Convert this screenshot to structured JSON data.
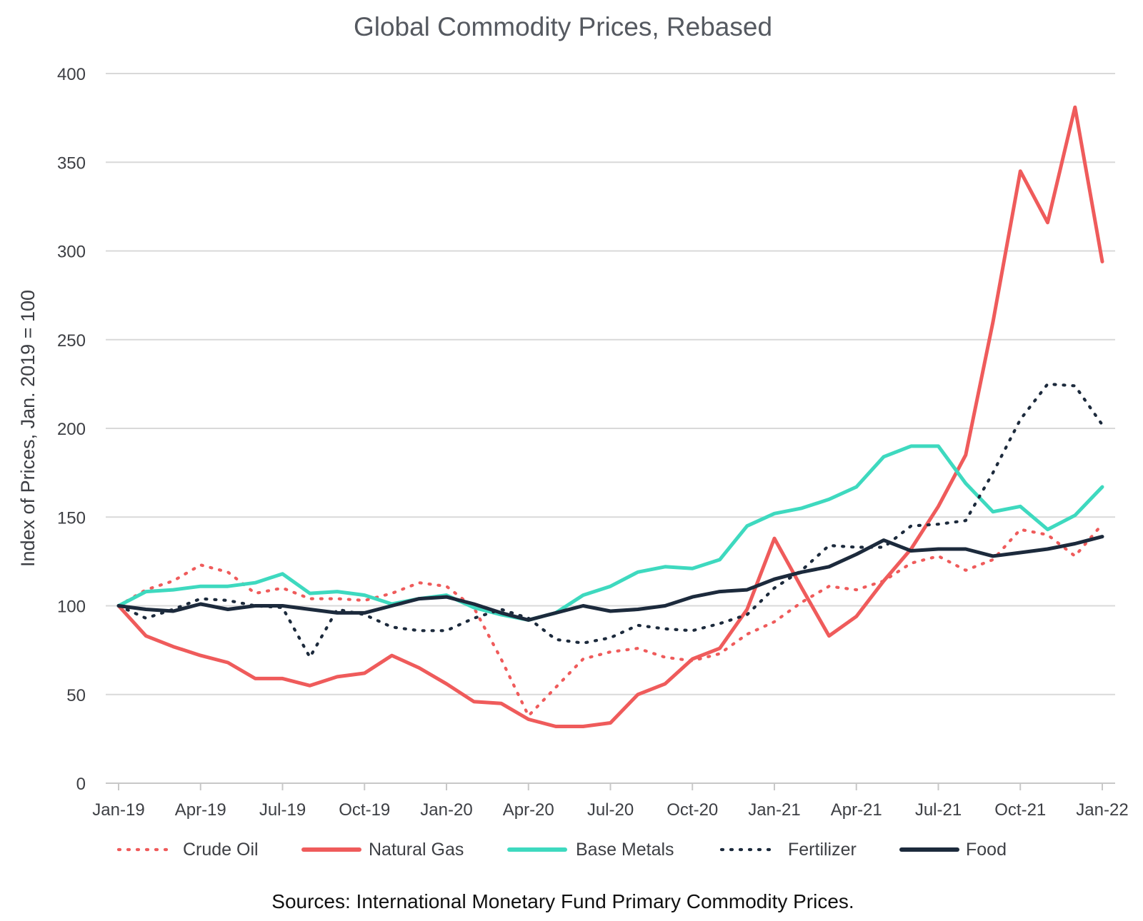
{
  "chart_data": {
    "type": "line",
    "title": "Global Commodity Prices, Rebased",
    "xlabel": "",
    "ylabel": "Index of Prices, Jan. 2019 = 100",
    "ylim": [
      0,
      400
    ],
    "yticks": [
      0,
      50,
      100,
      150,
      200,
      250,
      300,
      350,
      400
    ],
    "x_tick_labels": [
      "Jan-19",
      "Apr-19",
      "Jul-19",
      "Oct-19",
      "Jan-20",
      "Apr-20",
      "Jul-20",
      "Oct-20",
      "Jan-21",
      "Apr-21",
      "Jul-21",
      "Oct-21",
      "Jan-22"
    ],
    "x_tick_positions": [
      0,
      3,
      6,
      9,
      12,
      15,
      18,
      21,
      24,
      27,
      30,
      33,
      36
    ],
    "grid": true,
    "legend_position": "bottom",
    "source": "Sources: International Monetary Fund Primary Commodity Prices.",
    "categories": [
      "Jan-19",
      "Feb-19",
      "Mar-19",
      "Apr-19",
      "May-19",
      "Jun-19",
      "Jul-19",
      "Aug-19",
      "Sep-19",
      "Oct-19",
      "Nov-19",
      "Dec-19",
      "Jan-20",
      "Feb-20",
      "Mar-20",
      "Apr-20",
      "May-20",
      "Jun-20",
      "Jul-20",
      "Aug-20",
      "Sep-20",
      "Oct-20",
      "Nov-20",
      "Dec-20",
      "Jan-21",
      "Feb-21",
      "Mar-21",
      "Apr-21",
      "May-21",
      "Jun-21",
      "Jul-21",
      "Aug-21",
      "Sep-21",
      "Oct-21",
      "Nov-21",
      "Dec-21",
      "Jan-22"
    ],
    "series": [
      {
        "name": "Crude Oil",
        "color": "#ef5b5b",
        "style": "dotted",
        "values": [
          100,
          109,
          114,
          123,
          119,
          107,
          110,
          104,
          104,
          103,
          107,
          113,
          111,
          99,
          70,
          38,
          54,
          70,
          74,
          76,
          71,
          69,
          73,
          84,
          91,
          102,
          111,
          109,
          114,
          124,
          128,
          120,
          126,
          143,
          140,
          128,
          146
        ]
      },
      {
        "name": "Natural Gas",
        "color": "#ef5b5b",
        "style": "solid",
        "values": [
          100,
          83,
          77,
          72,
          68,
          59,
          59,
          55,
          60,
          62,
          72,
          65,
          56,
          46,
          45,
          36,
          32,
          32,
          34,
          50,
          56,
          70,
          76,
          98,
          138,
          110,
          83,
          94,
          114,
          132,
          156,
          185,
          260,
          345,
          316,
          381,
          294
        ]
      },
      {
        "name": "Base Metals",
        "color": "#3ed9bf",
        "style": "solid",
        "values": [
          100,
          108,
          109,
          111,
          111,
          113,
          118,
          107,
          108,
          106,
          101,
          104,
          106,
          99,
          95,
          92,
          96,
          106,
          111,
          119,
          122,
          121,
          126,
          145,
          152,
          155,
          160,
          167,
          184,
          190,
          190,
          169,
          153,
          156,
          143,
          151,
          167
        ]
      },
      {
        "name": "Fertilizer",
        "color": "#1c2a3c",
        "style": "dotted",
        "values": [
          100,
          93,
          98,
          104,
          103,
          100,
          99,
          71,
          98,
          95,
          88,
          86,
          86,
          93,
          98,
          93,
          81,
          79,
          82,
          89,
          87,
          86,
          90,
          95,
          110,
          120,
          134,
          133,
          133,
          145,
          146,
          148,
          175,
          205,
          225,
          224,
          202
        ]
      },
      {
        "name": "Food",
        "color": "#1c2a3c",
        "style": "solid",
        "values": [
          100,
          98,
          97,
          101,
          98,
          100,
          100,
          98,
          96,
          96,
          100,
          104,
          105,
          101,
          96,
          92,
          96,
          100,
          97,
          98,
          100,
          105,
          108,
          109,
          115,
          119,
          122,
          129,
          137,
          131,
          132,
          132,
          128,
          130,
          132,
          135,
          139
        ]
      }
    ]
  }
}
